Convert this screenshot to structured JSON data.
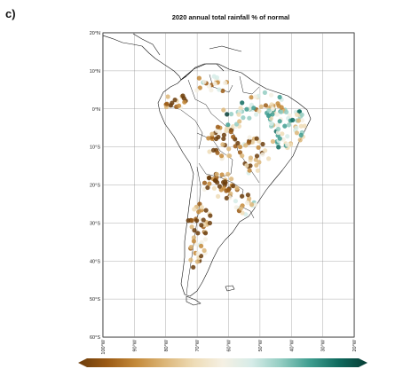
{
  "panel_label": "c)",
  "title": "2020 annual total rainfall % of normal",
  "lat_labels": [
    "20°N",
    "10°N",
    "0°N",
    "10°S",
    "20°S",
    "30°S",
    "40°S",
    "50°S",
    "60°S"
  ],
  "lon_labels": [
    "100°W",
    "90°W",
    "80°W",
    "70°W",
    "60°W",
    "50°W",
    "40°W",
    "30°W",
    "20°W"
  ],
  "colorbar": {
    "colors": [
      "#6b3c0b",
      "#9b5a14",
      "#c48a3a",
      "#dcb679",
      "#eedcb6",
      "#f5f0e3",
      "#d6ece8",
      "#93cdc2",
      "#3f9e90",
      "#0f6a5e",
      "#063c34"
    ]
  }
}
